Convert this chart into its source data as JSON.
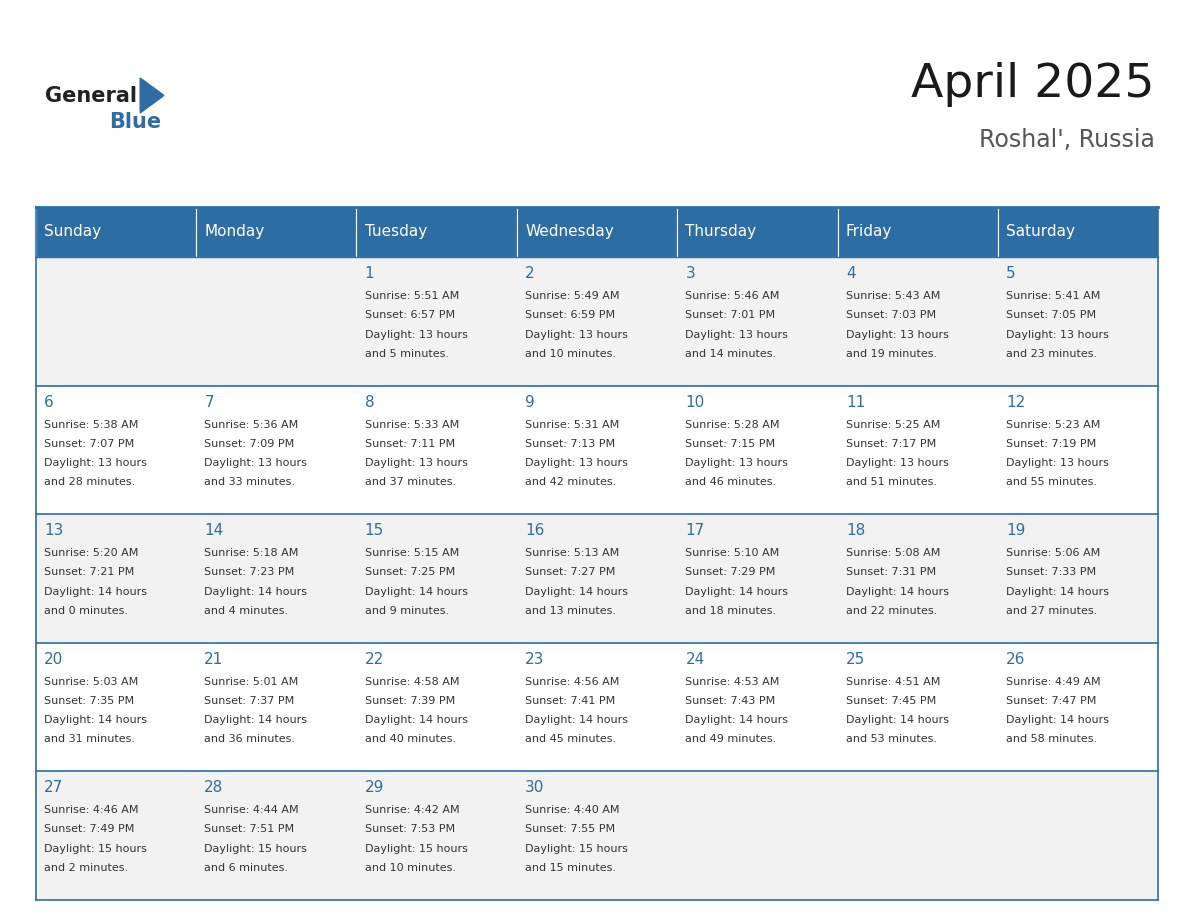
{
  "title": "April 2025",
  "subtitle": "Roshal', Russia",
  "header_bg": "#2E6DA4",
  "header_text_color": "#FFFFFF",
  "day_names": [
    "Sunday",
    "Monday",
    "Tuesday",
    "Wednesday",
    "Thursday",
    "Friday",
    "Saturday"
  ],
  "row_bg_even": "#F2F2F2",
  "row_bg_odd": "#FFFFFF",
  "cell_border_color": "#2E6DA4",
  "date_color": "#2E6DA4",
  "text_color": "#333333",
  "logo_general_color": "#222222",
  "logo_blue_color": "#2E6DA4",
  "days": [
    {
      "date": "1",
      "col": 2,
      "sunrise": "5:51 AM",
      "sunset": "6:57 PM",
      "dl1": "Daylight: 13 hours",
      "dl2": "and 5 minutes."
    },
    {
      "date": "2",
      "col": 3,
      "sunrise": "5:49 AM",
      "sunset": "6:59 PM",
      "dl1": "Daylight: 13 hours",
      "dl2": "and 10 minutes."
    },
    {
      "date": "3",
      "col": 4,
      "sunrise": "5:46 AM",
      "sunset": "7:01 PM",
      "dl1": "Daylight: 13 hours",
      "dl2": "and 14 minutes."
    },
    {
      "date": "4",
      "col": 5,
      "sunrise": "5:43 AM",
      "sunset": "7:03 PM",
      "dl1": "Daylight: 13 hours",
      "dl2": "and 19 minutes."
    },
    {
      "date": "5",
      "col": 6,
      "sunrise": "5:41 AM",
      "sunset": "7:05 PM",
      "dl1": "Daylight: 13 hours",
      "dl2": "and 23 minutes."
    },
    {
      "date": "6",
      "col": 0,
      "sunrise": "5:38 AM",
      "sunset": "7:07 PM",
      "dl1": "Daylight: 13 hours",
      "dl2": "and 28 minutes."
    },
    {
      "date": "7",
      "col": 1,
      "sunrise": "5:36 AM",
      "sunset": "7:09 PM",
      "dl1": "Daylight: 13 hours",
      "dl2": "and 33 minutes."
    },
    {
      "date": "8",
      "col": 2,
      "sunrise": "5:33 AM",
      "sunset": "7:11 PM",
      "dl1": "Daylight: 13 hours",
      "dl2": "and 37 minutes."
    },
    {
      "date": "9",
      "col": 3,
      "sunrise": "5:31 AM",
      "sunset": "7:13 PM",
      "dl1": "Daylight: 13 hours",
      "dl2": "and 42 minutes."
    },
    {
      "date": "10",
      "col": 4,
      "sunrise": "5:28 AM",
      "sunset": "7:15 PM",
      "dl1": "Daylight: 13 hours",
      "dl2": "and 46 minutes."
    },
    {
      "date": "11",
      "col": 5,
      "sunrise": "5:25 AM",
      "sunset": "7:17 PM",
      "dl1": "Daylight: 13 hours",
      "dl2": "and 51 minutes."
    },
    {
      "date": "12",
      "col": 6,
      "sunrise": "5:23 AM",
      "sunset": "7:19 PM",
      "dl1": "Daylight: 13 hours",
      "dl2": "and 55 minutes."
    },
    {
      "date": "13",
      "col": 0,
      "sunrise": "5:20 AM",
      "sunset": "7:21 PM",
      "dl1": "Daylight: 14 hours",
      "dl2": "and 0 minutes."
    },
    {
      "date": "14",
      "col": 1,
      "sunrise": "5:18 AM",
      "sunset": "7:23 PM",
      "dl1": "Daylight: 14 hours",
      "dl2": "and 4 minutes."
    },
    {
      "date": "15",
      "col": 2,
      "sunrise": "5:15 AM",
      "sunset": "7:25 PM",
      "dl1": "Daylight: 14 hours",
      "dl2": "and 9 minutes."
    },
    {
      "date": "16",
      "col": 3,
      "sunrise": "5:13 AM",
      "sunset": "7:27 PM",
      "dl1": "Daylight: 14 hours",
      "dl2": "and 13 minutes."
    },
    {
      "date": "17",
      "col": 4,
      "sunrise": "5:10 AM",
      "sunset": "7:29 PM",
      "dl1": "Daylight: 14 hours",
      "dl2": "and 18 minutes."
    },
    {
      "date": "18",
      "col": 5,
      "sunrise": "5:08 AM",
      "sunset": "7:31 PM",
      "dl1": "Daylight: 14 hours",
      "dl2": "and 22 minutes."
    },
    {
      "date": "19",
      "col": 6,
      "sunrise": "5:06 AM",
      "sunset": "7:33 PM",
      "dl1": "Daylight: 14 hours",
      "dl2": "and 27 minutes."
    },
    {
      "date": "20",
      "col": 0,
      "sunrise": "5:03 AM",
      "sunset": "7:35 PM",
      "dl1": "Daylight: 14 hours",
      "dl2": "and 31 minutes."
    },
    {
      "date": "21",
      "col": 1,
      "sunrise": "5:01 AM",
      "sunset": "7:37 PM",
      "dl1": "Daylight: 14 hours",
      "dl2": "and 36 minutes."
    },
    {
      "date": "22",
      "col": 2,
      "sunrise": "4:58 AM",
      "sunset": "7:39 PM",
      "dl1": "Daylight: 14 hours",
      "dl2": "and 40 minutes."
    },
    {
      "date": "23",
      "col": 3,
      "sunrise": "4:56 AM",
      "sunset": "7:41 PM",
      "dl1": "Daylight: 14 hours",
      "dl2": "and 45 minutes."
    },
    {
      "date": "24",
      "col": 4,
      "sunrise": "4:53 AM",
      "sunset": "7:43 PM",
      "dl1": "Daylight: 14 hours",
      "dl2": "and 49 minutes."
    },
    {
      "date": "25",
      "col": 5,
      "sunrise": "4:51 AM",
      "sunset": "7:45 PM",
      "dl1": "Daylight: 14 hours",
      "dl2": "and 53 minutes."
    },
    {
      "date": "26",
      "col": 6,
      "sunrise": "4:49 AM",
      "sunset": "7:47 PM",
      "dl1": "Daylight: 14 hours",
      "dl2": "and 58 minutes."
    },
    {
      "date": "27",
      "col": 0,
      "sunrise": "4:46 AM",
      "sunset": "7:49 PM",
      "dl1": "Daylight: 15 hours",
      "dl2": "and 2 minutes."
    },
    {
      "date": "28",
      "col": 1,
      "sunrise": "4:44 AM",
      "sunset": "7:51 PM",
      "dl1": "Daylight: 15 hours",
      "dl2": "and 6 minutes."
    },
    {
      "date": "29",
      "col": 2,
      "sunrise": "4:42 AM",
      "sunset": "7:53 PM",
      "dl1": "Daylight: 15 hours",
      "dl2": "and 10 minutes."
    },
    {
      "date": "30",
      "col": 3,
      "sunrise": "4:40 AM",
      "sunset": "7:55 PM",
      "dl1": "Daylight: 15 hours",
      "dl2": "and 15 minutes."
    }
  ]
}
